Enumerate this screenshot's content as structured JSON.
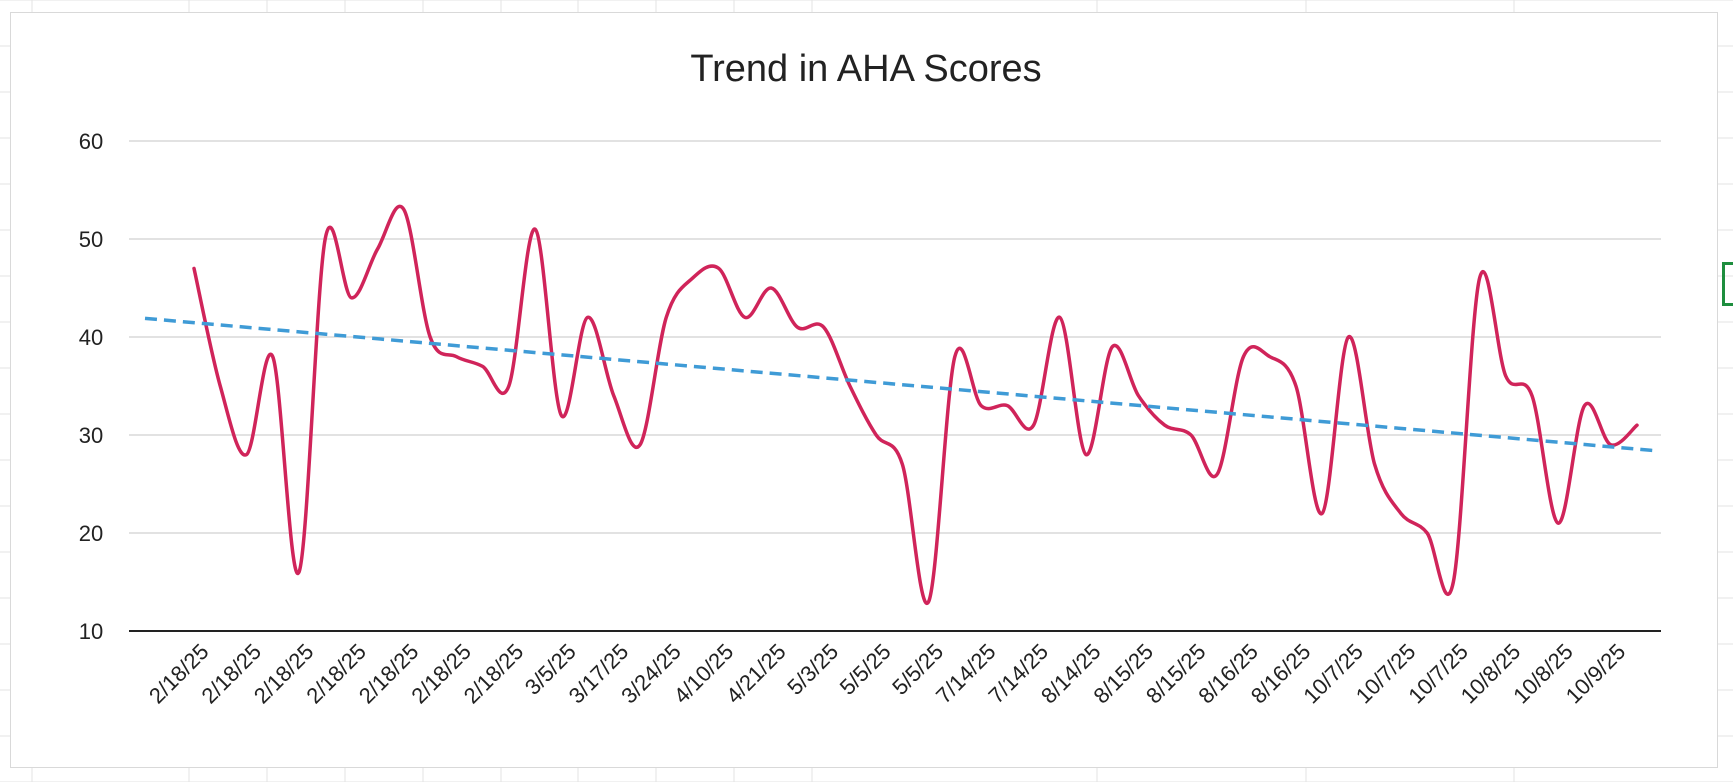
{
  "chart_data": {
    "type": "line",
    "title": "Trend in AHA Scores",
    "xlabel": "",
    "ylabel": "",
    "ylim": [
      10,
      60
    ],
    "yticks": [
      10,
      20,
      30,
      40,
      50,
      60
    ],
    "grid": true,
    "legend": "none",
    "x": [
      "2/18/25",
      "",
      "2/18/25",
      "",
      "2/18/25",
      "",
      "2/18/25",
      "",
      "2/18/25",
      "",
      "2/18/25",
      "",
      "2/18/25",
      "",
      "3/5/25",
      "",
      "3/17/25",
      "",
      "3/24/25",
      "",
      "4/10/25",
      "",
      "4/21/25",
      "",
      "5/3/25",
      "",
      "5/5/25",
      "",
      "5/5/25",
      "",
      "7/14/25",
      "",
      "7/14/25",
      "",
      "8/14/25",
      "",
      "8/15/25",
      "",
      "8/15/25",
      "",
      "8/16/25",
      "",
      "8/16/25",
      "",
      "10/7/25",
      "",
      "10/7/25",
      "",
      "10/7/25",
      "",
      "10/8/25",
      "",
      "10/8/25",
      "",
      "10/9/25",
      ""
    ],
    "series": [
      {
        "name": "",
        "color": "#d0245a",
        "smooth": true,
        "values": [
          47,
          35,
          28,
          38,
          16,
          50,
          44,
          49,
          53,
          40,
          38,
          37,
          35,
          51,
          32,
          42,
          34,
          29,
          42,
          46,
          47,
          42,
          45,
          41,
          41,
          35,
          30,
          27,
          13,
          38,
          33,
          33,
          31,
          42,
          28,
          39,
          34,
          31,
          30,
          26,
          38,
          38,
          35,
          22,
          40,
          27,
          22,
          20,
          15,
          46,
          36,
          34,
          21,
          33,
          29,
          31
        ]
      },
      {
        "name": "",
        "type": "trendline",
        "color": "#3f9bd6",
        "dashed": true,
        "start": 41.9,
        "end": 28.4
      }
    ]
  }
}
